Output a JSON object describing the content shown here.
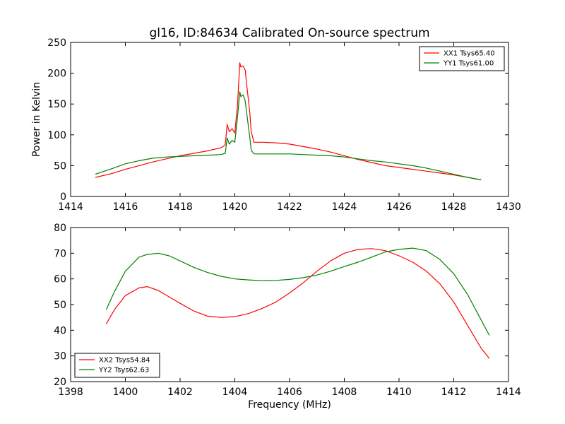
{
  "colors": {
    "red": "#ff0000",
    "green": "#008000"
  },
  "chart_data": [
    {
      "type": "line",
      "title": "gl16, ID:84634 Calibrated On-source spectrum",
      "xlabel": "",
      "ylabel": "Power in Kelvin",
      "xlim": [
        1414,
        1430
      ],
      "ylim": [
        0,
        250
      ],
      "xticks": [
        1414,
        1416,
        1418,
        1420,
        1422,
        1424,
        1426,
        1428,
        1430
      ],
      "yticks": [
        0,
        50,
        100,
        150,
        200,
        250
      ],
      "legend": "top-right",
      "series": [
        {
          "name": "XX1 Tsys65.40",
          "color": "#ff0000",
          "x": [
            1414.9,
            1415.5,
            1416,
            1416.5,
            1417,
            1417.5,
            1418,
            1418.5,
            1419,
            1419.5,
            1419.65,
            1419.72,
            1419.8,
            1419.9,
            1420.0,
            1420.1,
            1420.18,
            1420.22,
            1420.3,
            1420.38,
            1420.45,
            1420.5,
            1420.55,
            1420.6,
            1420.7,
            1421,
            1421.5,
            1422,
            1422.5,
            1423,
            1423.5,
            1424,
            1424.5,
            1425,
            1425.5,
            1426,
            1426.5,
            1427,
            1427.5,
            1428,
            1428.5,
            1429
          ],
          "y": [
            31,
            37,
            44,
            50,
            56,
            61,
            66,
            70,
            74,
            79,
            84,
            117,
            105,
            110,
            103,
            150,
            217,
            210,
            212,
            205,
            175,
            155,
            135,
            105,
            88,
            88,
            87,
            85,
            81,
            77,
            72,
            66,
            60,
            55,
            50,
            47,
            44,
            41,
            38,
            35,
            31,
            27
          ]
        },
        {
          "name": "YY1 Tsys61.00",
          "color": "#008000",
          "x": [
            1414.9,
            1415.5,
            1416,
            1416.5,
            1417,
            1417.5,
            1418,
            1418.5,
            1419,
            1419.5,
            1419.65,
            1419.72,
            1419.8,
            1419.9,
            1420.0,
            1420.1,
            1420.18,
            1420.22,
            1420.3,
            1420.38,
            1420.45,
            1420.5,
            1420.55,
            1420.6,
            1420.7,
            1421,
            1421.5,
            1422,
            1422.5,
            1423,
            1423.5,
            1424,
            1424.5,
            1425,
            1425.5,
            1426,
            1426.5,
            1427,
            1427.5,
            1428,
            1428.5,
            1429
          ],
          "y": [
            36,
            45,
            53,
            58,
            62,
            64,
            65,
            66,
            67,
            68,
            70,
            95,
            85,
            91,
            88,
            130,
            170,
            162,
            165,
            155,
            130,
            112,
            95,
            75,
            69,
            69,
            69,
            69,
            68,
            67,
            66,
            64,
            61,
            58,
            56,
            53,
            50,
            46,
            41,
            36,
            31,
            27
          ]
        }
      ]
    },
    {
      "type": "line",
      "title": "",
      "xlabel": "Frequency (MHz)",
      "ylabel": "",
      "xlim": [
        1398,
        1414
      ],
      "ylim": [
        20,
        80
      ],
      "xticks": [
        1398,
        1400,
        1402,
        1404,
        1406,
        1408,
        1410,
        1412,
        1414
      ],
      "yticks": [
        20,
        30,
        40,
        50,
        60,
        70,
        80
      ],
      "legend": "bottom-left",
      "series": [
        {
          "name": "XX2 Tsys54.84",
          "color": "#ff0000",
          "x": [
            1399.3,
            1399.6,
            1400,
            1400.5,
            1400.8,
            1401.2,
            1401.6,
            1402,
            1402.5,
            1403,
            1403.5,
            1404,
            1404.5,
            1405,
            1405.5,
            1406,
            1406.5,
            1407,
            1407.5,
            1408,
            1408.5,
            1409,
            1409.5,
            1410,
            1410.5,
            1411,
            1411.5,
            1412,
            1412.5,
            1413,
            1413.3
          ],
          "y": [
            42.5,
            48,
            53.5,
            56.5,
            57,
            55.5,
            53,
            50.5,
            47.5,
            45.5,
            45,
            45.3,
            46.5,
            48.5,
            51,
            54.5,
            58.5,
            63,
            67,
            70,
            71.5,
            71.8,
            71,
            69,
            66.5,
            63,
            58,
            51,
            42,
            33,
            29
          ]
        },
        {
          "name": "YY2 Tsys62.63",
          "color": "#008000",
          "x": [
            1399.3,
            1399.6,
            1400,
            1400.5,
            1400.8,
            1401.2,
            1401.6,
            1402,
            1402.5,
            1403,
            1403.5,
            1404,
            1404.5,
            1405,
            1405.5,
            1406,
            1406.5,
            1407,
            1407.5,
            1408,
            1408.5,
            1409,
            1409.5,
            1410,
            1410.5,
            1411,
            1411.5,
            1412,
            1412.5,
            1413,
            1413.3
          ],
          "y": [
            48,
            55,
            63,
            68.5,
            69.5,
            70,
            69,
            67,
            64.5,
            62.5,
            61,
            60,
            59.6,
            59.3,
            59.4,
            59.8,
            60.5,
            61.5,
            63,
            64.8,
            66.5,
            68.5,
            70.5,
            71.5,
            72,
            71,
            67.5,
            62,
            54,
            44,
            38
          ]
        }
      ]
    }
  ]
}
